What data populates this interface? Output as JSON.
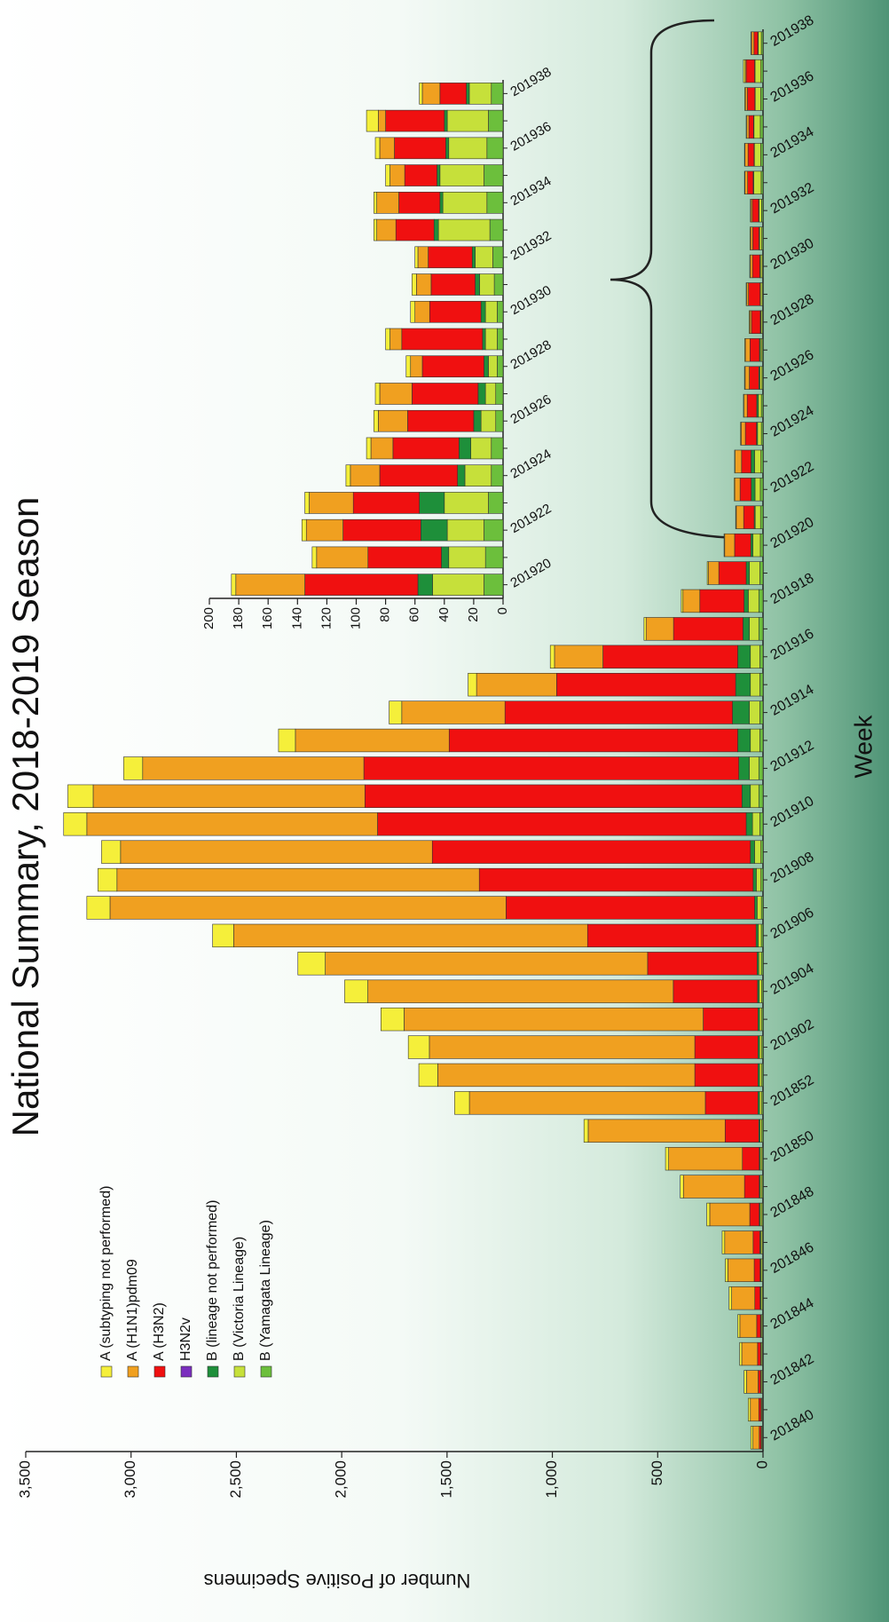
{
  "chart_data": [
    {
      "type": "bar",
      "stacked": true,
      "title": "National Summary, 2018-2019 Season",
      "xlabel": "Week",
      "ylabel": "Number of Positive Specimens",
      "legend": "upper left",
      "categories": [
        "201840",
        null,
        "201842",
        null,
        "201844",
        null,
        "201846",
        null,
        "201848",
        null,
        "201850",
        null,
        "201852",
        null,
        "201902",
        null,
        "201904",
        null,
        "201906",
        null,
        "201908",
        null,
        "201910",
        null,
        "201912",
        null,
        "201914",
        null,
        "201916",
        null,
        "201918",
        null,
        "201920",
        null,
        "201922",
        null,
        "201924",
        null,
        "201926",
        null,
        "201928",
        null,
        "201930",
        null,
        "201932",
        null,
        "201934",
        null,
        "201936",
        null,
        "201938"
      ],
      "series": [
        {
          "name": "A (subtyping not performed)",
          "color": "#f5ef3a",
          "values": [
            10,
            10,
            12,
            10,
            10,
            12,
            12,
            12,
            14,
            15,
            15,
            20,
            70,
            90,
            100,
            110,
            110,
            130,
            100,
            110,
            90,
            90,
            110,
            120,
            90,
            80,
            60,
            40,
            20,
            10,
            8,
            5,
            3,
            3,
            3,
            3,
            3,
            3,
            3,
            3,
            3,
            3,
            3,
            3,
            2,
            2,
            2,
            3,
            3,
            8,
            2
          ]
        },
        {
          "name": "A (H1N1)pdm09",
          "color": "#f0a020",
          "values": [
            30,
            40,
            55,
            75,
            80,
            110,
            125,
            135,
            190,
            290,
            350,
            650,
            1120,
            1220,
            1260,
            1420,
            1450,
            1530,
            1680,
            1880,
            1720,
            1480,
            1380,
            1290,
            1050,
            730,
            490,
            380,
            230,
            130,
            80,
            50,
            47,
            35,
            25,
            30,
            20,
            15,
            20,
            22,
            8,
            8,
            10,
            10,
            7,
            13,
            15,
            10,
            10,
            5,
            12
          ]
        },
        {
          "name": "A (H3N2)",
          "color": "#f01010",
          "values": [
            8,
            10,
            12,
            15,
            18,
            25,
            28,
            32,
            45,
            70,
            80,
            160,
            250,
            300,
            300,
            260,
            400,
            520,
            800,
            1180,
            1300,
            1510,
            1750,
            1790,
            1780,
            1370,
            1080,
            850,
            640,
            330,
            210,
            130,
            77,
            50,
            53,
            45,
            53,
            45,
            45,
            45,
            42,
            55,
            35,
            30,
            30,
            26,
            28,
            22,
            35,
            40,
            18
          ]
        },
        {
          "name": "H3N2v",
          "color": "#7b2fbe",
          "values": [
            0,
            0,
            0,
            0,
            0,
            0,
            0,
            0,
            0,
            0,
            0,
            0,
            0,
            0,
            0,
            0,
            0,
            0,
            0,
            0,
            0,
            0,
            0,
            0,
            0,
            0,
            0,
            0,
            0,
            0,
            0,
            0,
            0,
            0,
            0,
            0,
            0,
            0,
            0,
            0,
            0,
            0,
            0,
            0,
            0,
            0,
            0,
            0,
            0,
            0,
            0
          ]
        },
        {
          "name": "B (lineage not performed)",
          "color": "#1e8f3a",
          "values": [
            3,
            3,
            3,
            3,
            3,
            4,
            4,
            4,
            5,
            5,
            5,
            6,
            8,
            8,
            8,
            8,
            8,
            8,
            10,
            12,
            15,
            20,
            30,
            40,
            50,
            60,
            80,
            70,
            60,
            30,
            20,
            15,
            10,
            5,
            18,
            17,
            5,
            8,
            5,
            5,
            3,
            2,
            3,
            3,
            2,
            3,
            2,
            2,
            2,
            2,
            2
          ]
        },
        {
          "name": "B (Victoria Lineage)",
          "color": "#c6e03a",
          "values": [
            4,
            4,
            5,
            5,
            5,
            6,
            6,
            7,
            8,
            8,
            8,
            8,
            10,
            10,
            10,
            10,
            12,
            12,
            15,
            20,
            22,
            30,
            35,
            40,
            45,
            45,
            50,
            45,
            45,
            45,
            50,
            50,
            35,
            25,
            25,
            30,
            18,
            14,
            10,
            7,
            6,
            8,
            8,
            10,
            12,
            35,
            30,
            30,
            26,
            28,
            15
          ]
        },
        {
          "name": "B (Yamagata Lineage)",
          "color": "#6cbf3c",
          "values": [
            3,
            3,
            3,
            3,
            4,
            4,
            4,
            4,
            5,
            5,
            5,
            6,
            6,
            6,
            6,
            6,
            6,
            8,
            8,
            8,
            10,
            10,
            15,
            20,
            20,
            15,
            15,
            15,
            15,
            20,
            20,
            15,
            13,
            12,
            13,
            10,
            8,
            8,
            5,
            5,
            4,
            4,
            4,
            6,
            7,
            9,
            11,
            13,
            11,
            10,
            8
          ]
        }
      ],
      "ylim": [
        0,
        3500
      ],
      "yticks": [
        0,
        500,
        {
          "value": 1000,
          "label": "1,000"
        },
        {
          "value": 1500,
          "label": "1,500"
        },
        {
          "value": 2000,
          "label": "2,000"
        },
        {
          "value": 2500,
          "label": "2,500"
        },
        {
          "value": 3000,
          "label": "3,000"
        },
        {
          "value": 3500,
          "label": "3,500"
        }
      ]
    },
    {
      "type": "bar",
      "stacked": true,
      "categories": [
        "201920",
        null,
        "201922",
        null,
        "201924",
        null,
        "201926",
        null,
        "201928",
        null,
        "201930",
        null,
        "201932",
        null,
        "201934",
        null,
        "201936",
        null,
        "201938"
      ],
      "series": [
        {
          "color": "#f5ef3a",
          "values": [
            3,
            3,
            3,
            3,
            3,
            3,
            3,
            3,
            3,
            3,
            3,
            3,
            2,
            2,
            2,
            3,
            3,
            8,
            2
          ]
        },
        {
          "color": "#f0a020",
          "values": [
            47,
            35,
            25,
            30,
            20,
            15,
            20,
            22,
            8,
            8,
            10,
            10,
            7,
            13,
            15,
            10,
            10,
            5,
            12
          ]
        },
        {
          "color": "#f01010",
          "values": [
            77,
            50,
            53,
            45,
            53,
            45,
            45,
            45,
            42,
            55,
            35,
            30,
            30,
            26,
            28,
            22,
            35,
            40,
            18
          ]
        },
        {
          "color": "#7b2fbe",
          "values": [
            0,
            0,
            0,
            0,
            0,
            0,
            0,
            0,
            0,
            0,
            0,
            0,
            0,
            0,
            0,
            0,
            0,
            0,
            0
          ]
        },
        {
          "color": "#1e8f3a",
          "values": [
            10,
            5,
            18,
            17,
            5,
            8,
            5,
            5,
            3,
            2,
            3,
            3,
            2,
            3,
            2,
            2,
            2,
            2,
            2
          ]
        },
        {
          "color": "#c6e03a",
          "values": [
            35,
            25,
            25,
            30,
            18,
            14,
            10,
            7,
            6,
            8,
            8,
            10,
            12,
            35,
            30,
            30,
            26,
            28,
            15
          ]
        },
        {
          "color": "#6cbf3c",
          "values": [
            13,
            12,
            13,
            10,
            8,
            8,
            5,
            5,
            4,
            4,
            4,
            6,
            7,
            9,
            11,
            13,
            11,
            10,
            8
          ]
        }
      ],
      "ylim": [
        0,
        200
      ],
      "yticks": [
        0,
        20,
        40,
        60,
        80,
        100,
        120,
        140,
        160,
        180,
        200
      ]
    }
  ]
}
